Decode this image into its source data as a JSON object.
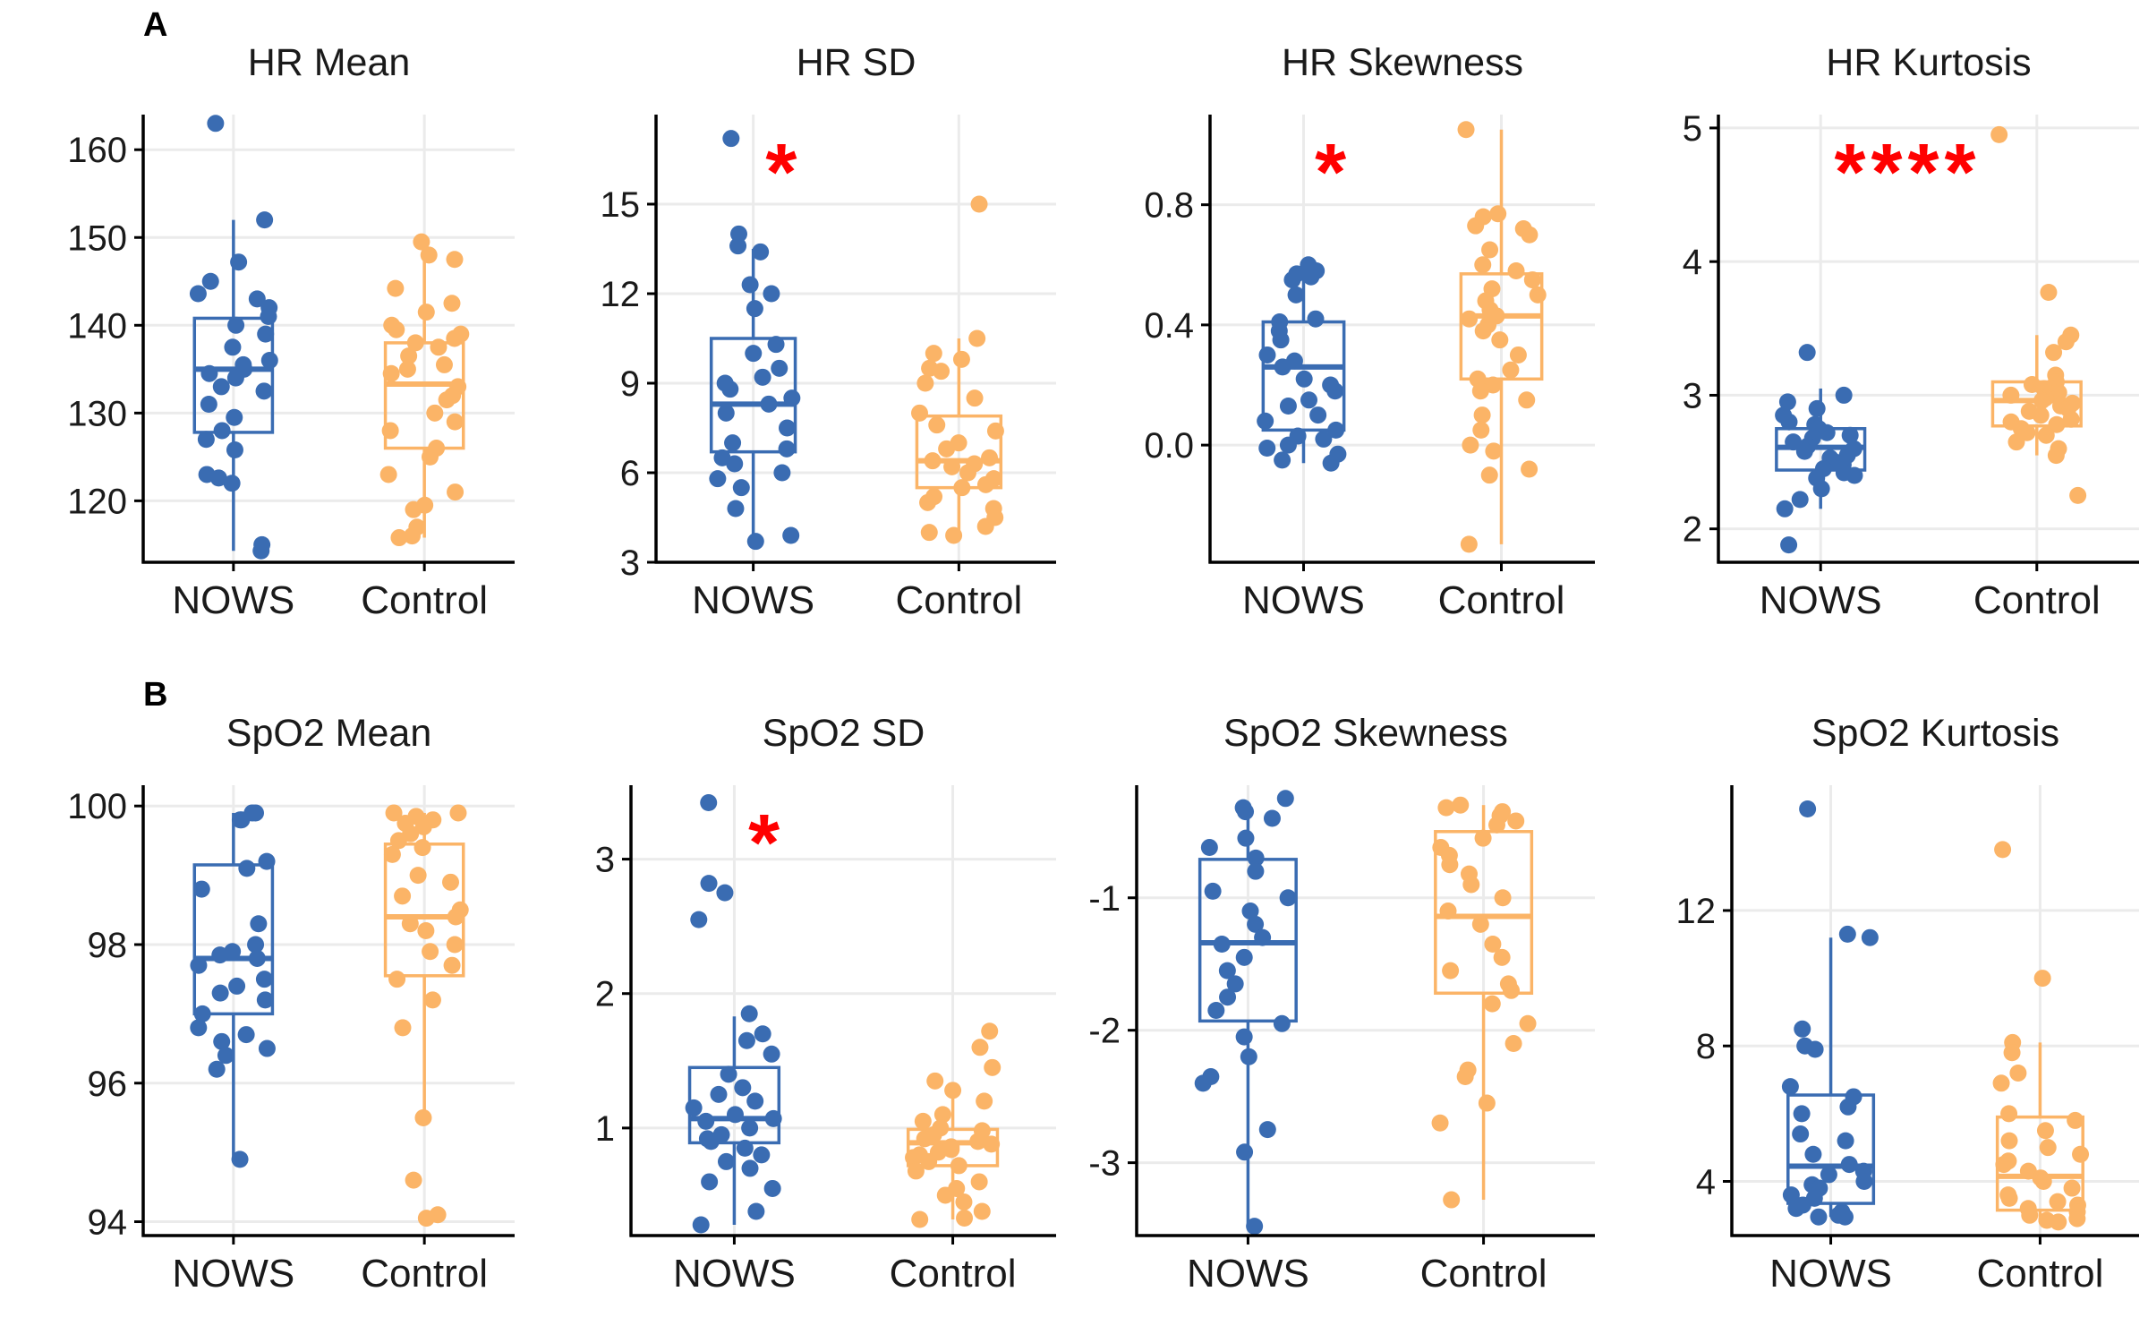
{
  "panel_labels": [
    "A",
    "B"
  ],
  "colors": {
    "NOWS": "#3a6cb2",
    "Control": "#fbb467",
    "significance": "#ff0000",
    "grid": "#ebebeb",
    "axis": "#000000"
  },
  "chart_data": [
    {
      "type": "box",
      "panel": "A",
      "title": "HR Mean",
      "categories": [
        "NOWS",
        "Control"
      ],
      "ylim": [
        113,
        164
      ],
      "yticks": [
        120,
        130,
        140,
        150,
        160
      ],
      "ytick_labels": [
        "120",
        "130",
        "140",
        "150",
        "160"
      ],
      "significance": "",
      "boxes": [
        {
          "name": "NOWS",
          "q1": 127.8,
          "median": 135.0,
          "q3": 140.8,
          "lower": 114.3,
          "upper": 152.0
        },
        {
          "name": "Control",
          "q1": 126.0,
          "median": 133.3,
          "q3": 138.0,
          "lower": 115.8,
          "upper": 149.5
        }
      ],
      "points": [
        [
          163.0,
          152.0,
          147.2,
          145.0,
          143.6,
          143.0,
          142.0,
          141.0,
          140.0,
          139.0,
          137.5,
          136.0,
          135.5,
          135.0,
          134.5,
          134.0,
          133.0,
          132.5,
          131.0,
          129.5,
          128.0,
          127.0,
          125.8,
          123.0,
          122.6,
          122.0,
          115.0,
          114.3
        ],
        [
          149.5,
          148.0,
          147.5,
          144.2,
          142.5,
          141.5,
          140.0,
          139.5,
          139.0,
          138.5,
          138.0,
          137.5,
          136.5,
          135.5,
          135.0,
          134.5,
          133.0,
          132.0,
          131.5,
          130.0,
          129.0,
          128.0,
          126.0,
          125.0,
          123.0,
          121.0,
          119.5,
          119.0,
          117.0,
          116.0,
          115.8
        ]
      ]
    },
    {
      "type": "box",
      "panel": "A",
      "title": "HR SD",
      "categories": [
        "NOWS",
        "Control"
      ],
      "ylim": [
        3,
        18
      ],
      "yticks": [
        3,
        6,
        9,
        12,
        15
      ],
      "ytick_labels": [
        "3",
        "6",
        "9",
        "12",
        "15"
      ],
      "significance": "*",
      "boxes": [
        {
          "name": "NOWS",
          "q1": 6.7,
          "median": 8.3,
          "q3": 10.5,
          "lower": 3.7,
          "upper": 13.5
        },
        {
          "name": "Control",
          "q1": 5.5,
          "median": 6.4,
          "q3": 7.9,
          "lower": 3.9,
          "upper": 10.5
        }
      ],
      "points": [
        [
          17.2,
          14.0,
          13.6,
          13.4,
          12.3,
          12.0,
          11.5,
          10.3,
          10.0,
          9.5,
          9.2,
          9.0,
          8.8,
          8.5,
          8.3,
          8.0,
          7.5,
          7.0,
          6.8,
          6.5,
          6.3,
          6.0,
          5.8,
          5.5,
          4.8,
          3.9,
          3.7
        ],
        [
          15.0,
          10.5,
          10.0,
          9.8,
          9.5,
          9.4,
          9.0,
          8.5,
          8.0,
          7.6,
          7.4,
          7.0,
          6.8,
          6.5,
          6.4,
          6.3,
          6.2,
          6.0,
          5.8,
          5.6,
          5.5,
          5.2,
          5.0,
          4.8,
          4.5,
          4.2,
          4.0,
          3.9
        ]
      ]
    },
    {
      "type": "box",
      "panel": "A",
      "title": "HR Skewness",
      "categories": [
        "NOWS",
        "Control"
      ],
      "ylim": [
        -0.39,
        1.1
      ],
      "yticks": [
        0.0,
        0.4,
        0.8
      ],
      "ytick_labels": [
        "0.0",
        "0.4",
        "0.8"
      ],
      "significance": "*",
      "boxes": [
        {
          "name": "NOWS",
          "q1": 0.05,
          "median": 0.26,
          "q3": 0.41,
          "lower": -0.06,
          "upper": 0.6
        },
        {
          "name": "Control",
          "q1": 0.22,
          "median": 0.43,
          "q3": 0.57,
          "lower": -0.33,
          "upper": 1.05
        }
      ],
      "points": [
        [
          0.6,
          0.59,
          0.58,
          0.57,
          0.56,
          0.55,
          0.5,
          0.42,
          0.41,
          0.38,
          0.35,
          0.3,
          0.28,
          0.26,
          0.22,
          0.2,
          0.18,
          0.15,
          0.13,
          0.1,
          0.08,
          0.05,
          0.03,
          0.02,
          0.0,
          -0.01,
          -0.03,
          -0.05,
          -0.06
        ],
        [
          1.05,
          0.77,
          0.76,
          0.73,
          0.72,
          0.7,
          0.65,
          0.6,
          0.58,
          0.55,
          0.52,
          0.5,
          0.48,
          0.45,
          0.43,
          0.42,
          0.4,
          0.38,
          0.35,
          0.3,
          0.25,
          0.22,
          0.2,
          0.18,
          0.15,
          0.1,
          0.05,
          0.0,
          -0.02,
          -0.08,
          -0.1,
          -0.33
        ]
      ]
    },
    {
      "type": "box",
      "panel": "A",
      "title": "HR Kurtosis",
      "categories": [
        "NOWS",
        "Control"
      ],
      "ylim": [
        1.75,
        5.1
      ],
      "yticks": [
        2,
        3,
        4,
        5
      ],
      "ytick_labels": [
        "2",
        "3",
        "4",
        "5"
      ],
      "significance": "****",
      "boxes": [
        {
          "name": "NOWS",
          "q1": 2.44,
          "median": 2.61,
          "q3": 2.75,
          "lower": 2.15,
          "upper": 3.05
        },
        {
          "name": "Control",
          "q1": 2.77,
          "median": 2.96,
          "q3": 3.1,
          "lower": 2.55,
          "upper": 3.45
        }
      ],
      "points": [
        [
          3.32,
          3.0,
          2.95,
          2.9,
          2.85,
          2.8,
          2.78,
          2.75,
          2.72,
          2.7,
          2.68,
          2.65,
          2.62,
          2.6,
          2.58,
          2.55,
          2.53,
          2.5,
          2.48,
          2.45,
          2.42,
          2.4,
          2.38,
          2.3,
          2.22,
          2.15,
          1.88
        ],
        [
          4.95,
          3.77,
          3.45,
          3.4,
          3.32,
          3.15,
          3.1,
          3.08,
          3.05,
          3.02,
          3.0,
          2.98,
          2.96,
          2.94,
          2.92,
          2.9,
          2.88,
          2.85,
          2.82,
          2.8,
          2.78,
          2.75,
          2.72,
          2.7,
          2.65,
          2.6,
          2.55,
          2.25
        ]
      ]
    },
    {
      "type": "box",
      "panel": "B",
      "title": "SpO2 Mean",
      "categories": [
        "NOWS",
        "Control"
      ],
      "ylim": [
        93.8,
        100.3
      ],
      "yticks": [
        94,
        96,
        98,
        100
      ],
      "ytick_labels": [
        "94",
        "96",
        "98",
        "100"
      ],
      "significance": "",
      "boxes": [
        {
          "name": "NOWS",
          "q1": 97.0,
          "median": 97.8,
          "q3": 99.15,
          "lower": 94.9,
          "upper": 99.9
        },
        {
          "name": "Control",
          "q1": 97.55,
          "median": 98.4,
          "q3": 99.45,
          "lower": 95.5,
          "upper": 99.9
        }
      ],
      "points": [
        [
          99.9,
          99.9,
          99.8,
          99.8,
          99.2,
          99.1,
          98.8,
          98.3,
          98.0,
          97.9,
          97.85,
          97.8,
          97.7,
          97.5,
          97.4,
          97.3,
          97.2,
          97.0,
          96.8,
          96.7,
          96.6,
          96.5,
          96.4,
          96.2,
          94.9
        ],
        [
          99.9,
          99.9,
          99.85,
          99.8,
          99.75,
          99.7,
          99.6,
          99.5,
          99.4,
          99.3,
          99.0,
          98.9,
          98.7,
          98.5,
          98.4,
          98.3,
          98.2,
          98.0,
          97.9,
          97.7,
          97.5,
          97.2,
          96.8,
          95.5,
          94.6,
          94.1,
          94.05
        ]
      ]
    },
    {
      "type": "box",
      "panel": "B",
      "title": "SpO2 SD",
      "categories": [
        "NOWS",
        "Control"
      ],
      "ylim": [
        0.2,
        3.55
      ],
      "yticks": [
        1,
        2,
        3
      ],
      "ytick_labels": [
        "1",
        "2",
        "3"
      ],
      "significance": "*",
      "boxes": [
        {
          "name": "NOWS",
          "q1": 0.89,
          "median": 1.07,
          "q3": 1.45,
          "lower": 0.28,
          "upper": 1.83
        },
        {
          "name": "Control",
          "q1": 0.72,
          "median": 0.89,
          "q3": 0.99,
          "lower": 0.32,
          "upper": 1.3
        }
      ],
      "points": [
        [
          3.42,
          2.82,
          2.75,
          2.55,
          1.85,
          1.7,
          1.65,
          1.55,
          1.4,
          1.3,
          1.25,
          1.2,
          1.15,
          1.1,
          1.07,
          1.05,
          1.0,
          0.95,
          0.92,
          0.9,
          0.85,
          0.8,
          0.75,
          0.7,
          0.6,
          0.55,
          0.38,
          0.28
        ],
        [
          1.72,
          1.6,
          1.45,
          1.35,
          1.28,
          1.2,
          1.1,
          1.05,
          1.0,
          0.98,
          0.95,
          0.92,
          0.9,
          0.88,
          0.86,
          0.84,
          0.82,
          0.8,
          0.78,
          0.75,
          0.72,
          0.68,
          0.6,
          0.55,
          0.5,
          0.45,
          0.38,
          0.33,
          0.32
        ]
      ]
    },
    {
      "type": "box",
      "panel": "B",
      "title": "SpO2 Skewness",
      "categories": [
        "NOWS",
        "Control"
      ],
      "ylim": [
        -3.55,
        -0.15
      ],
      "yticks": [
        -3,
        -2,
        -1
      ],
      "ytick_labels": [
        "-3",
        "-2",
        "-1"
      ],
      "significance": "",
      "boxes": [
        {
          "name": "NOWS",
          "q1": -1.93,
          "median": -1.34,
          "q3": -0.71,
          "lower": -3.48,
          "upper": -0.3
        },
        {
          "name": "Control",
          "q1": -1.72,
          "median": -1.14,
          "q3": -0.5,
          "lower": -3.28,
          "upper": -0.3
        }
      ],
      "points": [
        [
          -0.25,
          -0.32,
          -0.35,
          -0.4,
          -0.55,
          -0.62,
          -0.7,
          -0.8,
          -0.95,
          -1.0,
          -1.1,
          -1.2,
          -1.3,
          -1.35,
          -1.45,
          -1.55,
          -1.65,
          -1.75,
          -1.85,
          -1.95,
          -2.05,
          -2.2,
          -2.35,
          -2.4,
          -2.75,
          -2.92,
          -3.48
        ],
        [
          -0.3,
          -0.32,
          -0.35,
          -0.38,
          -0.42,
          -0.45,
          -0.55,
          -0.62,
          -0.68,
          -0.75,
          -0.82,
          -0.9,
          -1.0,
          -1.1,
          -1.2,
          -1.35,
          -1.45,
          -1.55,
          -1.65,
          -1.7,
          -1.8,
          -1.95,
          -2.1,
          -2.3,
          -2.35,
          -2.55,
          -2.7,
          -3.28
        ]
      ]
    },
    {
      "type": "box",
      "panel": "B",
      "title": "SpO2 Kurtosis",
      "categories": [
        "NOWS",
        "Control"
      ],
      "ylim": [
        2.4,
        15.7
      ],
      "yticks": [
        4,
        8,
        12
      ],
      "ytick_labels": [
        "4",
        "8",
        "12"
      ],
      "significance": "",
      "boxes": [
        {
          "name": "NOWS",
          "q1": 3.35,
          "median": 4.45,
          "q3": 6.55,
          "lower": 2.95,
          "upper": 11.2
        },
        {
          "name": "Control",
          "q1": 3.15,
          "median": 4.15,
          "q3": 5.9,
          "lower": 2.8,
          "upper": 8.1
        }
      ],
      "points": [
        [
          15.0,
          11.3,
          11.2,
          8.5,
          8.0,
          7.9,
          6.8,
          6.5,
          6.2,
          6.0,
          5.4,
          5.2,
          4.8,
          4.5,
          4.3,
          4.2,
          4.0,
          3.9,
          3.8,
          3.6,
          3.5,
          3.3,
          3.2,
          3.1,
          3.0,
          2.95,
          2.95
        ],
        [
          13.8,
          10.0,
          8.1,
          7.8,
          7.2,
          6.9,
          6.0,
          5.8,
          5.5,
          5.2,
          5.0,
          4.8,
          4.6,
          4.5,
          4.3,
          4.1,
          4.0,
          3.8,
          3.6,
          3.5,
          3.4,
          3.3,
          3.2,
          3.1,
          3.0,
          2.9,
          2.85,
          2.8
        ]
      ]
    }
  ]
}
